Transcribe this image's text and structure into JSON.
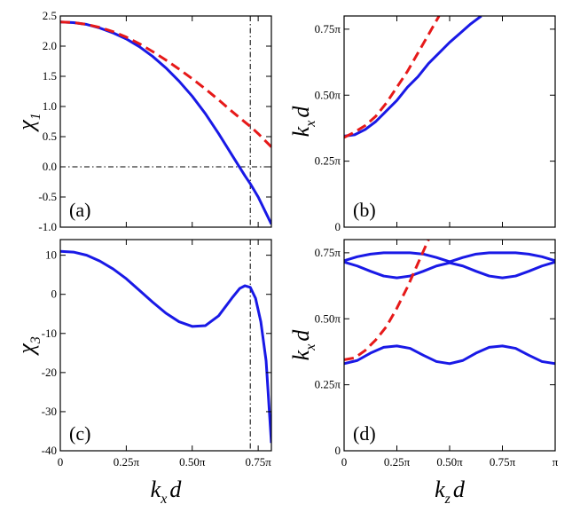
{
  "chart_data": [
    {
      "panel": "(a)",
      "type": "line",
      "ylabel": "χ",
      "ylabel_sub": "1",
      "xlim": [
        0,
        0.8
      ],
      "ylim": [
        -1.0,
        2.5
      ],
      "x_ticks": [],
      "x_tick_labels": [],
      "y_ticks": [
        -1.0,
        -0.5,
        0.0,
        0.5,
        1.0,
        1.5,
        2.0,
        2.5
      ],
      "y_tick_labels": [
        "-1.0",
        "-0.5",
        "0.0",
        "0.5",
        "1.0",
        "1.5",
        "2.0",
        "2.5"
      ],
      "vlines": [
        0.72
      ],
      "hlines": [
        0.0
      ],
      "series": [
        {
          "color": "#1919e6",
          "style": "solid",
          "x": [
            0,
            0.05,
            0.1,
            0.15,
            0.2,
            0.25,
            0.3,
            0.35,
            0.4,
            0.45,
            0.5,
            0.55,
            0.6,
            0.65,
            0.7,
            0.72,
            0.75,
            0.8
          ],
          "y": [
            2.4,
            2.39,
            2.36,
            2.3,
            2.22,
            2.12,
            1.99,
            1.83,
            1.64,
            1.42,
            1.17,
            0.88,
            0.55,
            0.2,
            -0.15,
            -0.28,
            -0.5,
            -0.95
          ]
        },
        {
          "color": "#e61919",
          "style": "dashed",
          "x": [
            0,
            0.05,
            0.1,
            0.15,
            0.2,
            0.25,
            0.3,
            0.35,
            0.4,
            0.45,
            0.5,
            0.55,
            0.6,
            0.65,
            0.7,
            0.72,
            0.75,
            0.8
          ],
          "y": [
            2.4,
            2.39,
            2.36,
            2.31,
            2.24,
            2.15,
            2.04,
            1.91,
            1.77,
            1.62,
            1.46,
            1.29,
            1.11,
            0.92,
            0.74,
            0.67,
            0.55,
            0.33
          ]
        }
      ]
    },
    {
      "panel": "(b)",
      "type": "line",
      "ylabel": "k",
      "ylabel_sub": "x",
      "ylabel_tail": "d",
      "xlim": [
        0,
        1.0
      ],
      "ylim": [
        0,
        0.8
      ],
      "x_ticks": [],
      "x_tick_labels": [],
      "y_ticks": [
        0,
        0.25,
        0.5,
        0.75
      ],
      "y_tick_labels": [
        "0",
        "0.25π",
        "0.50π",
        "0.75π"
      ],
      "vlines": [],
      "hlines": [],
      "series": [
        {
          "color": "#1919e6",
          "style": "solid",
          "x": [
            0,
            0.05,
            0.1,
            0.15,
            0.2,
            0.25,
            0.3,
            0.35,
            0.4,
            0.45,
            0.5,
            0.55,
            0.6,
            0.65
          ],
          "y": [
            0.345,
            0.35,
            0.37,
            0.4,
            0.44,
            0.48,
            0.53,
            0.57,
            0.62,
            0.66,
            0.7,
            0.735,
            0.77,
            0.8
          ]
        },
        {
          "color": "#e61919",
          "style": "dashed",
          "x": [
            0,
            0.05,
            0.1,
            0.15,
            0.2,
            0.25,
            0.3,
            0.35,
            0.4,
            0.45
          ],
          "y": [
            0.34,
            0.36,
            0.385,
            0.42,
            0.47,
            0.53,
            0.59,
            0.66,
            0.73,
            0.8
          ]
        }
      ]
    },
    {
      "panel": "(c)",
      "type": "line",
      "ylabel": "χ",
      "ylabel_sub": "3",
      "xlabel": "k",
      "xlabel_sub": "x",
      "xlabel_tail": "d",
      "xlim": [
        0,
        0.8
      ],
      "ylim": [
        -40,
        14
      ],
      "x_ticks": [
        0,
        0.25,
        0.5,
        0.75
      ],
      "x_tick_labels": [
        "0",
        "0.25π",
        "0.50π",
        "0.75π"
      ],
      "y_ticks": [
        -40,
        -30,
        -20,
        -10,
        0,
        10
      ],
      "y_tick_labels": [
        "-40",
        "-30",
        "-20",
        "-10",
        "0",
        "10"
      ],
      "vlines": [
        0.72
      ],
      "hlines": [],
      "series": [
        {
          "color": "#1919e6",
          "style": "solid",
          "x": [
            0,
            0.05,
            0.1,
            0.15,
            0.2,
            0.25,
            0.3,
            0.35,
            0.4,
            0.45,
            0.5,
            0.55,
            0.6,
            0.65,
            0.68,
            0.7,
            0.72,
            0.74,
            0.76,
            0.78,
            0.8
          ],
          "y": [
            11,
            10.8,
            10,
            8.5,
            6.5,
            4,
            1,
            -2,
            -4.8,
            -7,
            -8.2,
            -8,
            -5.5,
            -1,
            1.5,
            2.2,
            1.8,
            -1,
            -7,
            -17,
            -38
          ]
        }
      ]
    },
    {
      "panel": "(d)",
      "type": "line",
      "ylabel": "k",
      "ylabel_sub": "x",
      "ylabel_tail": "d",
      "xlabel": "k",
      "xlabel_sub": "z",
      "xlabel_tail": "d",
      "xlim": [
        0,
        1.0
      ],
      "ylim": [
        0,
        0.8
      ],
      "x_ticks": [
        0,
        0.25,
        0.5,
        0.75,
        1.0
      ],
      "x_tick_labels": [
        "0",
        "0.25π",
        "0.50π",
        "0.75π",
        "π"
      ],
      "y_ticks": [
        0,
        0.25,
        0.5,
        0.75
      ],
      "y_tick_labels": [
        "0",
        "0.25π",
        "0.50π",
        "0.75π"
      ],
      "vlines": [],
      "hlines": [],
      "series": [
        {
          "color": "#1919e6",
          "style": "solid",
          "x": [
            0,
            0.0625,
            0.125,
            0.1875,
            0.25,
            0.3125,
            0.375,
            0.4375,
            0.5,
            0.5625,
            0.625,
            0.6875,
            0.75,
            0.8125,
            0.875,
            0.9375,
            1.0
          ],
          "y": [
            0.33,
            0.342,
            0.37,
            0.392,
            0.397,
            0.388,
            0.362,
            0.338,
            0.33,
            0.342,
            0.37,
            0.392,
            0.397,
            0.388,
            0.362,
            0.338,
            0.33
          ]
        },
        {
          "color": "#1919e6",
          "style": "solid",
          "x": [
            0,
            0.0625,
            0.125,
            0.1875,
            0.25,
            0.3125,
            0.375,
            0.4375,
            0.5,
            0.5625,
            0.625,
            0.6875,
            0.75,
            0.8125,
            0.875,
            0.9375,
            1.0
          ],
          "y": [
            0.715,
            0.7,
            0.68,
            0.662,
            0.655,
            0.662,
            0.68,
            0.7,
            0.712,
            0.7,
            0.68,
            0.662,
            0.655,
            0.662,
            0.68,
            0.7,
            0.715
          ]
        },
        {
          "color": "#1919e6",
          "style": "solid",
          "x": [
            0,
            0.0625,
            0.125,
            0.1875,
            0.25,
            0.3125,
            0.375,
            0.4375,
            0.5,
            0.5625,
            0.625,
            0.6875,
            0.75,
            0.8125,
            0.875,
            0.9375,
            1.0
          ],
          "y": [
            0.72,
            0.735,
            0.745,
            0.75,
            0.75,
            0.75,
            0.745,
            0.732,
            0.716,
            0.732,
            0.745,
            0.75,
            0.75,
            0.75,
            0.745,
            0.735,
            0.72
          ]
        },
        {
          "color": "#e61919",
          "style": "dashed",
          "x": [
            0,
            0.05,
            0.1,
            0.15,
            0.2,
            0.25,
            0.3,
            0.35,
            0.4
          ],
          "y": [
            0.345,
            0.352,
            0.38,
            0.42,
            0.47,
            0.54,
            0.62,
            0.71,
            0.8
          ]
        }
      ]
    }
  ]
}
